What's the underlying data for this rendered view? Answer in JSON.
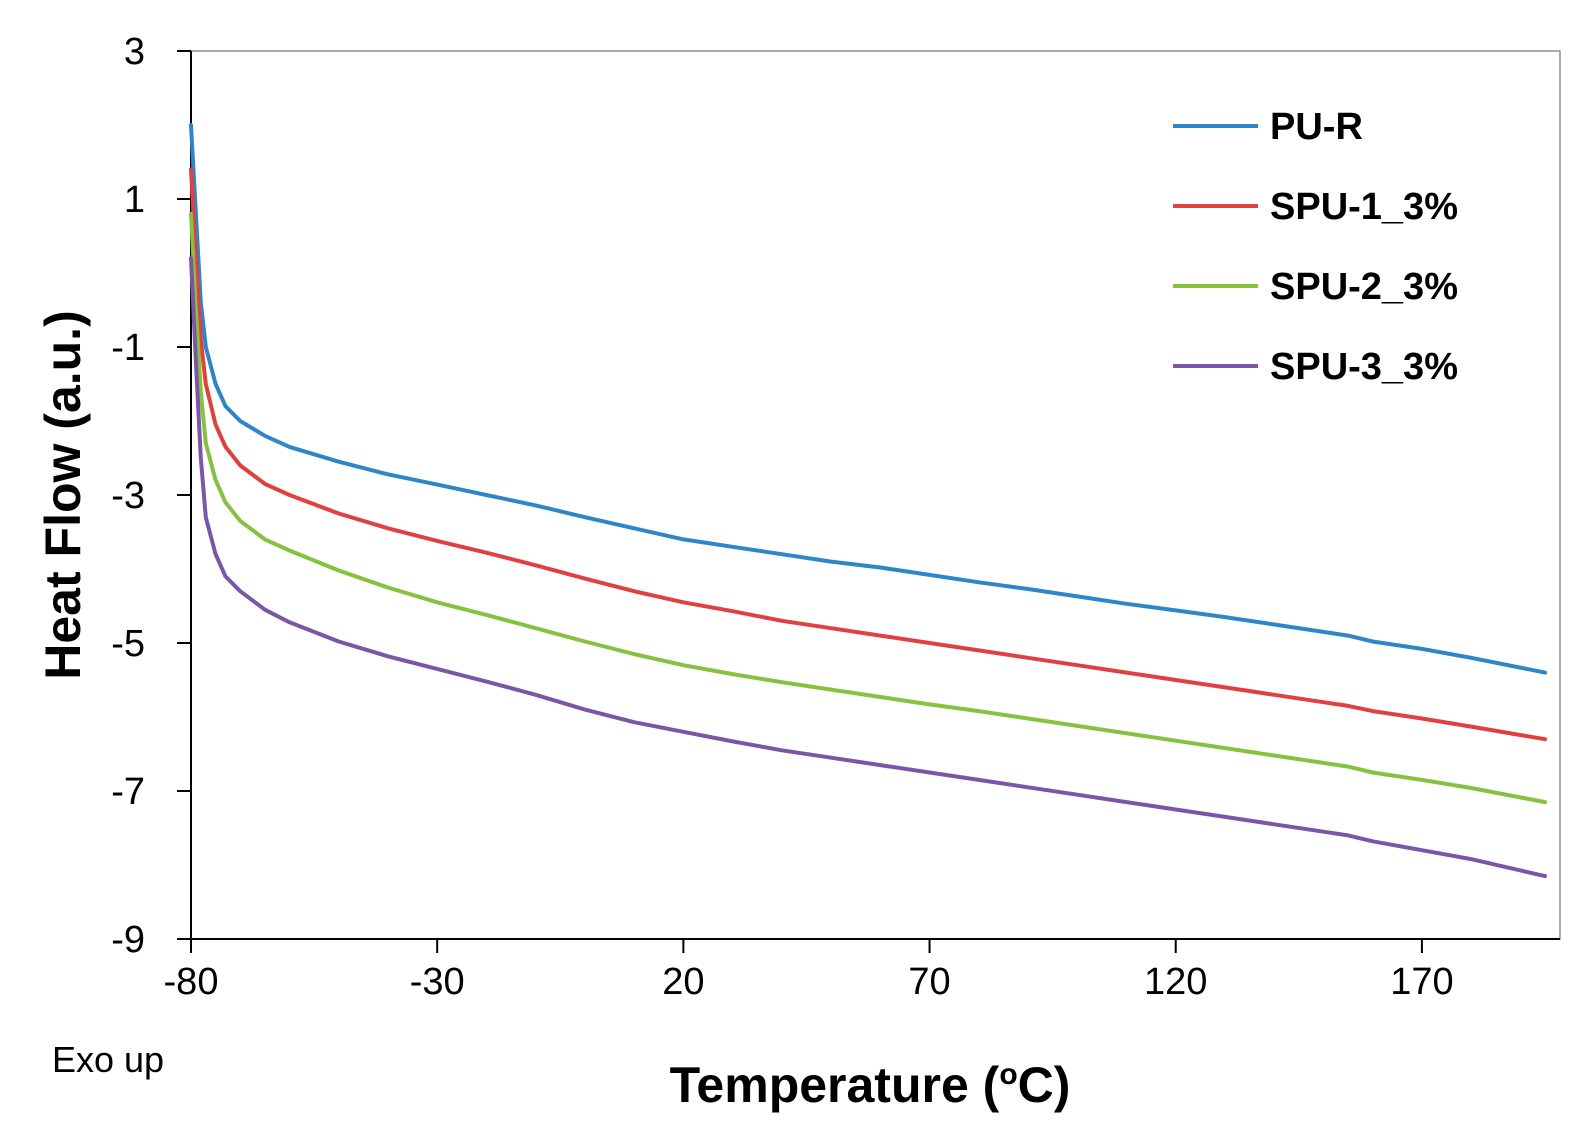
{
  "chart_data": {
    "type": "line",
    "title": "",
    "xlabel": "Temperature (",
    "xlabel_sup": "o",
    "xlabel_end": "C)",
    "ylabel": "Heat Flow (a.u.)",
    "note": "Exo up",
    "xlim": [
      -80,
      195
    ],
    "ylim": [
      -9,
      3
    ],
    "xticks": [
      -80,
      -30,
      20,
      70,
      120,
      170
    ],
    "yticks": [
      3,
      1,
      -1,
      -3,
      -5,
      -7,
      -9
    ],
    "legend_position": "top-right",
    "series": [
      {
        "name": "PU-R",
        "color": "#2e86c8",
        "x": [
          -80,
          -79,
          -78,
          -77,
          -75,
          -73,
          -70,
          -65,
          -60,
          -50,
          -40,
          -30,
          -20,
          -10,
          0,
          10,
          20,
          30,
          40,
          50,
          60,
          70,
          80,
          90,
          100,
          110,
          120,
          130,
          140,
          150,
          155,
          160,
          170,
          180,
          195
        ],
        "y": [
          2.0,
          0.8,
          -0.4,
          -1.0,
          -1.5,
          -1.8,
          -2.0,
          -2.2,
          -2.35,
          -2.55,
          -2.72,
          -2.86,
          -3.0,
          -3.14,
          -3.3,
          -3.45,
          -3.6,
          -3.7,
          -3.8,
          -3.9,
          -3.98,
          -4.08,
          -4.18,
          -4.27,
          -4.37,
          -4.47,
          -4.56,
          -4.65,
          -4.75,
          -4.85,
          -4.9,
          -4.98,
          -5.08,
          -5.2,
          -5.4
        ]
      },
      {
        "name": "SPU-1_3%",
        "color": "#e04040",
        "x": [
          -80,
          -79,
          -78,
          -77,
          -75,
          -73,
          -70,
          -65,
          -60,
          -50,
          -40,
          -30,
          -20,
          -10,
          0,
          10,
          20,
          30,
          40,
          50,
          60,
          70,
          80,
          90,
          100,
          110,
          120,
          130,
          140,
          150,
          155,
          160,
          170,
          180,
          195
        ],
        "y": [
          1.4,
          0.2,
          -0.9,
          -1.5,
          -2.05,
          -2.35,
          -2.6,
          -2.85,
          -3.0,
          -3.25,
          -3.45,
          -3.62,
          -3.78,
          -3.95,
          -4.13,
          -4.3,
          -4.45,
          -4.57,
          -4.7,
          -4.8,
          -4.9,
          -5.0,
          -5.1,
          -5.2,
          -5.3,
          -5.4,
          -5.5,
          -5.6,
          -5.7,
          -5.8,
          -5.85,
          -5.92,
          -6.02,
          -6.13,
          -6.3
        ]
      },
      {
        "name": "SPU-2_3%",
        "color": "#86c140",
        "x": [
          -80,
          -79,
          -78,
          -77,
          -75,
          -73,
          -70,
          -65,
          -60,
          -50,
          -40,
          -30,
          -20,
          -10,
          0,
          10,
          20,
          30,
          40,
          50,
          60,
          70,
          80,
          90,
          100,
          110,
          120,
          130,
          140,
          150,
          155,
          160,
          170,
          180,
          195
        ],
        "y": [
          0.8,
          -0.5,
          -1.6,
          -2.3,
          -2.8,
          -3.1,
          -3.35,
          -3.6,
          -3.75,
          -4.02,
          -4.25,
          -4.45,
          -4.62,
          -4.8,
          -4.98,
          -5.15,
          -5.3,
          -5.42,
          -5.53,
          -5.63,
          -5.73,
          -5.83,
          -5.92,
          -6.02,
          -6.12,
          -6.22,
          -6.32,
          -6.42,
          -6.52,
          -6.62,
          -6.67,
          -6.75,
          -6.85,
          -6.96,
          -7.15
        ]
      },
      {
        "name": "SPU-3_3%",
        "color": "#7b56a6",
        "x": [
          -80,
          -79,
          -78,
          -77,
          -75,
          -73,
          -70,
          -65,
          -60,
          -50,
          -40,
          -30,
          -20,
          -10,
          0,
          10,
          20,
          30,
          40,
          50,
          60,
          70,
          80,
          90,
          100,
          110,
          120,
          130,
          140,
          150,
          155,
          160,
          170,
          180,
          195
        ],
        "y": [
          0.2,
          -1.2,
          -2.5,
          -3.3,
          -3.8,
          -4.1,
          -4.3,
          -4.55,
          -4.72,
          -4.98,
          -5.18,
          -5.35,
          -5.52,
          -5.7,
          -5.9,
          -6.07,
          -6.2,
          -6.33,
          -6.45,
          -6.55,
          -6.65,
          -6.75,
          -6.85,
          -6.95,
          -7.05,
          -7.15,
          -7.25,
          -7.35,
          -7.45,
          -7.55,
          -7.6,
          -7.68,
          -7.8,
          -7.92,
          -8.15
        ]
      }
    ]
  }
}
